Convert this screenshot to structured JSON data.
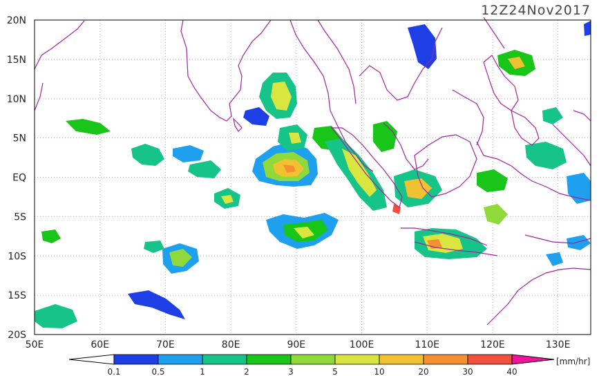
{
  "title": "12Z24Nov2017",
  "lat_labels": [
    "20N",
    "15N",
    "10N",
    "5N",
    "EQ",
    "5S",
    "10S",
    "15S",
    "20S"
  ],
  "lon_labels": [
    "50E",
    "60E",
    "70E",
    "80E",
    "90E",
    "100E",
    "110E",
    "120E",
    "130E"
  ],
  "colorbar": {
    "unit": "[mm/hr]",
    "ticks": [
      "0.1",
      "0.5",
      "1",
      "2",
      "3",
      "5",
      "10",
      "20",
      "30",
      "40"
    ],
    "colors": [
      "#1f3fe6",
      "#1ea0ef",
      "#16c48a",
      "#19c519",
      "#8fd93b",
      "#d9e640",
      "#f0c232",
      "#f49032",
      "#f0503c",
      "#f0149c"
    ]
  },
  "map_colors": {
    "coast": "#a0249e",
    "grid": "#b8b8b8"
  }
}
